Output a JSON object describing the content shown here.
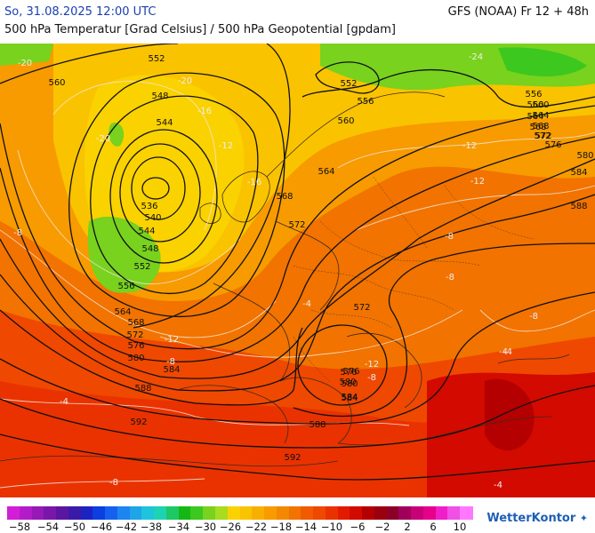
{
  "header": {
    "date": "So, 31.08.2025 12:00 UTC",
    "model": "GFS (NOAA) Fr 12 + 48h",
    "subtitle": "500 hPa Temperatur [Grad Celsius] / 500 hPa Geopotential [gpdam]"
  },
  "logo": {
    "text": "WetterKontor",
    "icon": "weathervane-icon"
  },
  "legend": {
    "ticks": [
      "−58",
      "−54",
      "−50",
      "−46",
      "−42",
      "−38",
      "−34",
      "−30",
      "−26",
      "−22",
      "−18",
      "−14",
      "−10",
      "−6",
      "−2",
      "2",
      "6",
      "10"
    ],
    "colors": [
      "#d21ed7",
      "#b41bc8",
      "#9619b8",
      "#7a17a8",
      "#5a16a0",
      "#3a1aa8",
      "#1c23c0",
      "#0c3ee0",
      "#1461ee",
      "#1d84f0",
      "#1ea4e8",
      "#1ec4dc",
      "#1ed2b4",
      "#1ec864",
      "#14b814",
      "#3cc81e",
      "#78d21e",
      "#a8dc1e",
      "#fad200",
      "#fac300",
      "#f8b000",
      "#f79b00",
      "#f48800",
      "#f27300",
      "#f05a00",
      "#ef4800",
      "#ea3200",
      "#e21a00",
      "#d20a00",
      "#b40000",
      "#9a0010",
      "#8c0028",
      "#a0005a",
      "#c80078",
      "#e6008c",
      "#f01ec8",
      "#f050e6",
      "#ff78ff"
    ]
  },
  "map": {
    "geopotential_labels": [
      "552",
      "560",
      "548",
      "544",
      "536",
      "540",
      "544",
      "548",
      "552",
      "556",
      "564",
      "568",
      "572",
      "576",
      "580",
      "584",
      "588",
      "592",
      "588",
      "592",
      "584",
      "580",
      "576",
      "572",
      "568",
      "564",
      "560",
      "556",
      "552",
      "556",
      "560",
      "564",
      "568",
      "572",
      "576",
      "580",
      "584",
      "588",
      "572",
      "576",
      "580",
      "584",
      "560",
      "564",
      "568",
      "572"
    ],
    "temperature_labels": [
      "-20",
      "-24",
      "-20",
      "-16",
      "-12",
      "-12",
      "-16",
      "-12",
      "-8",
      "-8",
      "-12",
      "-8",
      "-4",
      "-8",
      "-4",
      "-12",
      "-8",
      "-4",
      "-20",
      "-8",
      "-4",
      "-4",
      "-8"
    ]
  }
}
